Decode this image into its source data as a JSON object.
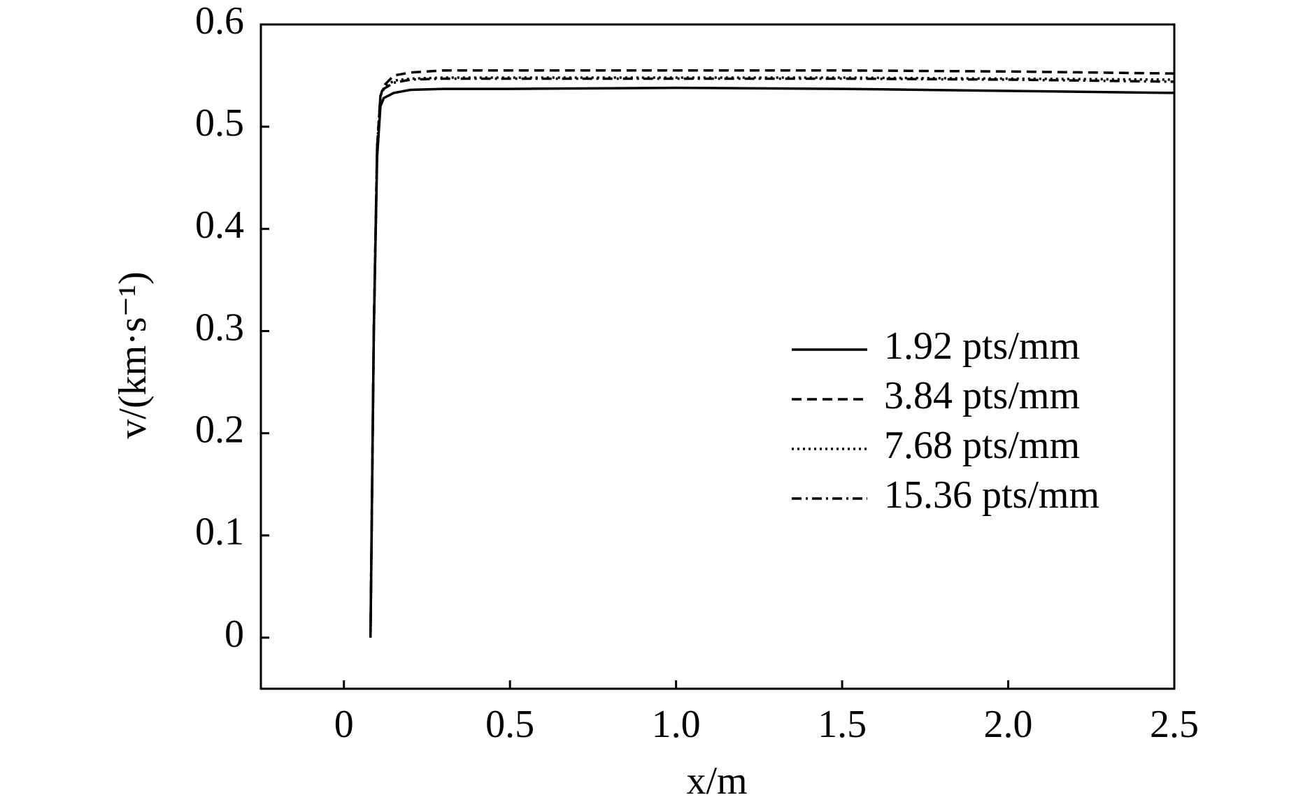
{
  "chart_data": {
    "type": "line",
    "x_label": "x/m",
    "y_label": "v/(km·s⁻¹)",
    "x": [
      0.08,
      0.09,
      0.1,
      0.11,
      0.12,
      0.15,
      0.2,
      0.3,
      0.5,
      1.0,
      1.5,
      2.0,
      2.5
    ],
    "series": [
      {
        "name": "1.92 pts/mm",
        "color": "#000000",
        "line_style": "solid",
        "values": [
          0,
          0.3,
          0.47,
          0.52,
          0.528,
          0.533,
          0.536,
          0.537,
          0.537,
          0.538,
          0.537,
          0.535,
          0.533
        ]
      },
      {
        "name": "3.84 pts/mm",
        "color": "#000000",
        "line_style": "dashed",
        "values": [
          0,
          0.3,
          0.48,
          0.53,
          0.54,
          0.55,
          0.553,
          0.555,
          0.555,
          0.555,
          0.555,
          0.554,
          0.552
        ]
      },
      {
        "name": "7.68 pts/mm",
        "color": "#000000",
        "line_style": "dotted",
        "values": [
          0,
          0.3,
          0.48,
          0.53,
          0.538,
          0.545,
          0.547,
          0.548,
          0.548,
          0.548,
          0.548,
          0.547,
          0.546
        ]
      },
      {
        "name": "15.36 pts/mm",
        "color": "#000000",
        "line_style": "dashdot",
        "values": [
          0,
          0.3,
          0.48,
          0.53,
          0.537,
          0.543,
          0.546,
          0.547,
          0.547,
          0.547,
          0.547,
          0.546,
          0.544
        ]
      }
    ],
    "xlim": [
      -0.25,
      2.5
    ],
    "xticks": [
      0,
      0.5,
      {
        "value": 1,
        "label": "1.0"
      },
      1.5,
      {
        "value": 2,
        "label": "2.0"
      },
      2.5
    ],
    "ylim": [
      -0.05,
      0.6
    ],
    "yticks": [
      0,
      0.1,
      0.2,
      0.3,
      0.4,
      0.5,
      0.6
    ],
    "grid": false,
    "legend": "right"
  }
}
